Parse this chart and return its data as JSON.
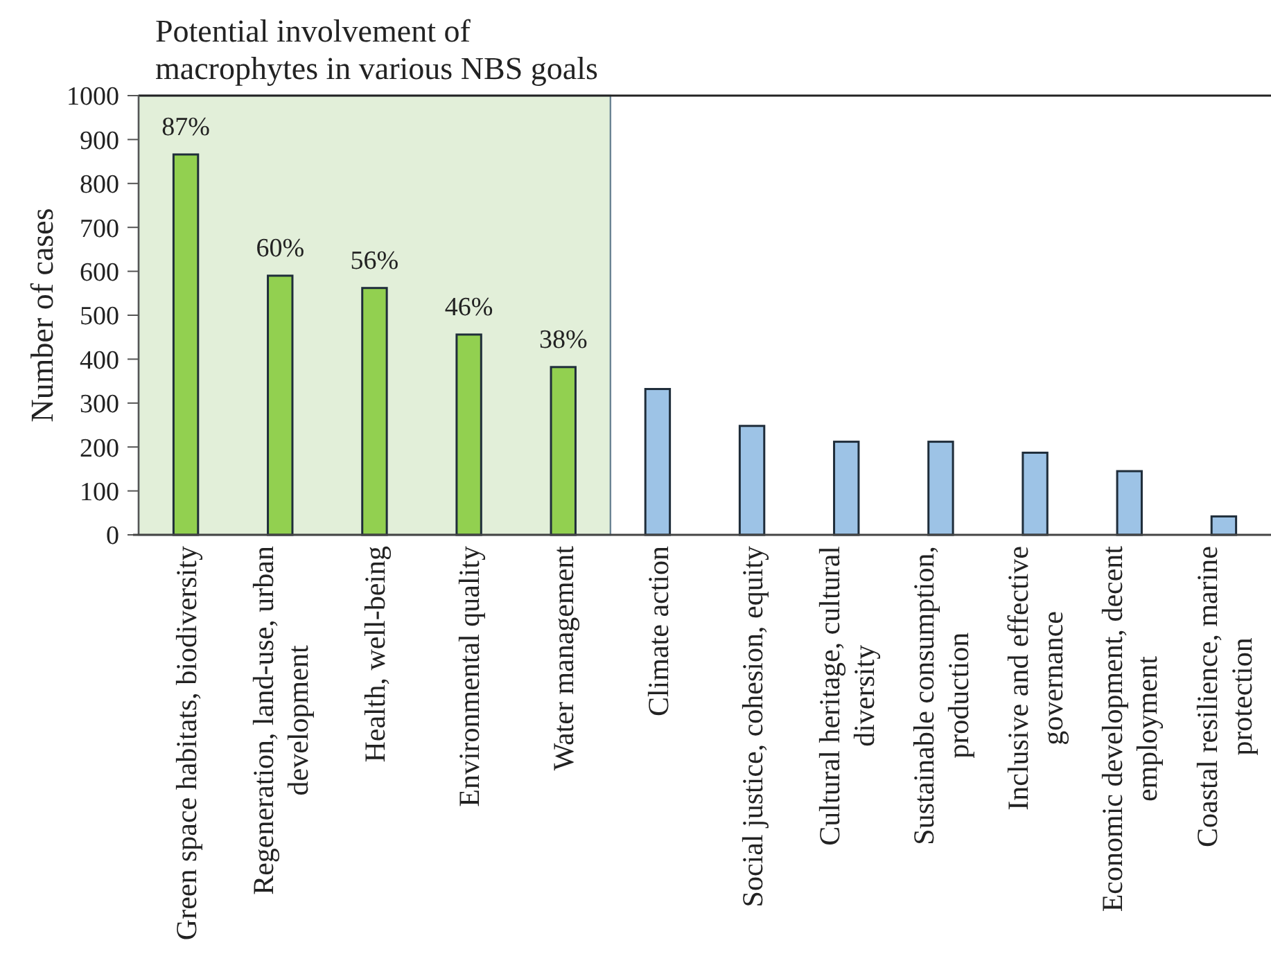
{
  "chart_data": {
    "type": "bar",
    "ylabel": "Number of cases",
    "categories": [
      "Green space habitats, biodiversity",
      "Regeneration, land-use, urban development",
      "Health, well-being",
      "Environmental quality",
      "Water management",
      "Climate action",
      "Social justice, cohesion, equity",
      "Cultural heritage, cultural diversity",
      "Sustainable consumption, production",
      "Inclusive and effective governance",
      "Economic development, decent employment",
      "Coastal resilience, marine protection"
    ],
    "values": [
      866,
      590,
      562,
      456,
      382,
      332,
      248,
      212,
      212,
      187,
      145,
      42
    ],
    "colors": [
      "#92d050",
      "#92d050",
      "#92d050",
      "#92d050",
      "#92d050",
      "#9dc3e6",
      "#9dc3e6",
      "#9dc3e6",
      "#9dc3e6",
      "#9dc3e6",
      "#9dc3e6",
      "#9dc3e6"
    ],
    "annotations": [
      {
        "text": "87%",
        "x": "Green space habitats, biodiversity",
        "y": 866
      },
      {
        "text": "60%",
        "x": "Regeneration, land-use, urban development",
        "y": 590
      },
      {
        "text": "56%",
        "x": "Health, well-being",
        "y": 562
      },
      {
        "text": "46%",
        "x": "Environmental quality",
        "y": 456
      },
      {
        "text": "38%",
        "x": "Water management",
        "y": 382
      }
    ],
    "ylim": [
      0,
      1000
    ],
    "yticks": [
      0,
      100,
      200,
      300,
      400,
      500,
      600,
      700,
      800,
      900,
      1000
    ],
    "bands": [
      {
        "axis": "x",
        "from": "Green space habitats, biodiversity",
        "to": "Water management",
        "label": "Potential involvement of macrophytes in various NBS goals",
        "color": "#e2efd9"
      }
    ]
  }
}
